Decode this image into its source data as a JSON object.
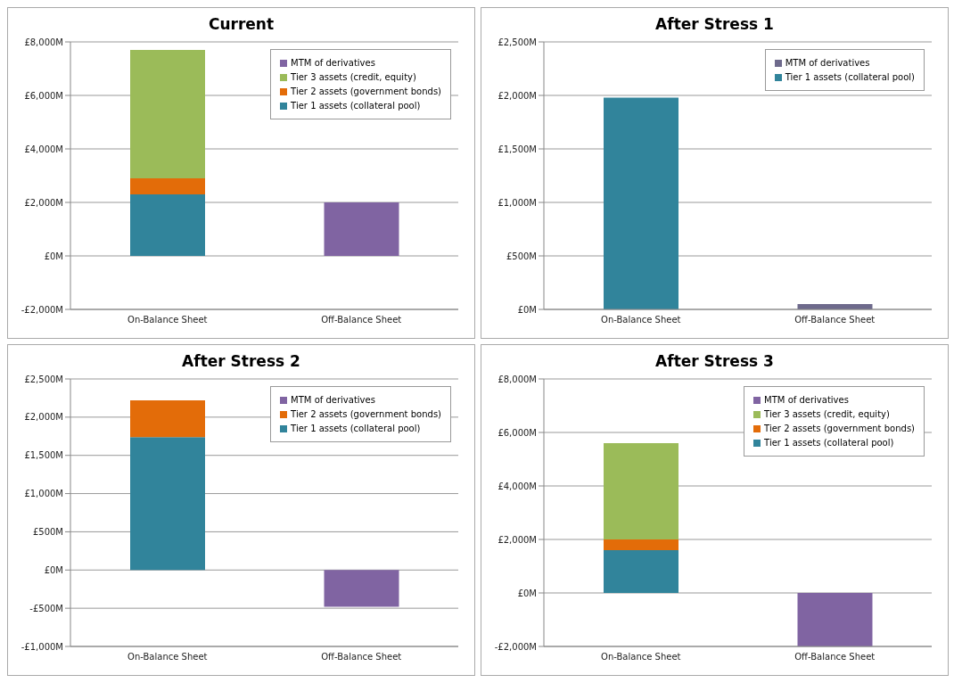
{
  "chart_data": [
    {
      "type": "bar",
      "title": "Current",
      "stacked": true,
      "categories": [
        "On-Balance Sheet",
        "Off-Balance Sheet"
      ],
      "ylim": [
        -2000,
        8000
      ],
      "yticks": [
        {
          "value": -2000,
          "label": "-£2,000M"
        },
        {
          "value": 0,
          "label": "£0M"
        },
        {
          "value": 2000,
          "label": "£2,000M"
        },
        {
          "value": 4000,
          "label": "£4,000M"
        },
        {
          "value": 6000,
          "label": "£6,000M"
        },
        {
          "value": 8000,
          "label": "£8,000M"
        }
      ],
      "grid": "y",
      "legend": "top right",
      "series": [
        {
          "name": "Tier 1 assets (collateral pool)",
          "color": "#31849b",
          "values": [
            2300,
            null
          ]
        },
        {
          "name": "Tier 2 assets (government bonds)",
          "color": "#e36c09",
          "values": [
            600,
            null
          ]
        },
        {
          "name": "Tier 3 assets (credit, equity)",
          "color": "#9bbb59",
          "values": [
            4800,
            null
          ]
        },
        {
          "name": "MTM of derivatives",
          "color": "#8064a2",
          "values": [
            null,
            2000
          ]
        }
      ]
    },
    {
      "type": "bar",
      "title": "After Stress 1",
      "stacked": true,
      "categories": [
        "On-Balance Sheet",
        "Off-Balance Sheet"
      ],
      "ylim": [
        0,
        2500
      ],
      "yticks": [
        {
          "value": 0,
          "label": "£0M"
        },
        {
          "value": 500,
          "label": "£500M"
        },
        {
          "value": 1000,
          "label": "£1,000M"
        },
        {
          "value": 1500,
          "label": "£1,500M"
        },
        {
          "value": 2000,
          "label": "£2,000M"
        },
        {
          "value": 2500,
          "label": "£2,500M"
        }
      ],
      "grid": "y",
      "legend": "top right",
      "series": [
        {
          "name": "Tier 1 assets (collateral pool)",
          "color": "#31849b",
          "values": [
            1980,
            null
          ]
        },
        {
          "name": "MTM of derivatives",
          "color": "#6e6a8c",
          "values": [
            null,
            50
          ]
        }
      ]
    },
    {
      "type": "bar",
      "title": "After Stress 2",
      "stacked": true,
      "categories": [
        "On-Balance Sheet",
        "Off-Balance Sheet"
      ],
      "ylim": [
        -1000,
        2500
      ],
      "yticks": [
        {
          "value": -1000,
          "label": "-£1,000M"
        },
        {
          "value": -500,
          "label": "-£500M"
        },
        {
          "value": 0,
          "label": "£0M"
        },
        {
          "value": 500,
          "label": "£500M"
        },
        {
          "value": 1000,
          "label": "£1,000M"
        },
        {
          "value": 1500,
          "label": "£1,500M"
        },
        {
          "value": 2000,
          "label": "£2,000M"
        },
        {
          "value": 2500,
          "label": "£2,500M"
        }
      ],
      "grid": "y",
      "legend": "top right",
      "series": [
        {
          "name": "Tier 1 assets (collateral pool)",
          "color": "#31849b",
          "values": [
            1740,
            null
          ]
        },
        {
          "name": "Tier 2 assets (government bonds)",
          "color": "#e36c09",
          "values": [
            480,
            null
          ]
        },
        {
          "name": "MTM of derivatives",
          "color": "#8064a2",
          "values": [
            null,
            -480
          ]
        }
      ]
    },
    {
      "type": "bar",
      "title": "After Stress 3",
      "stacked": true,
      "categories": [
        "On-Balance Sheet",
        "Off-Balance Sheet"
      ],
      "ylim": [
        -2000,
        8000
      ],
      "yticks": [
        {
          "value": -2000,
          "label": "-£2,000M"
        },
        {
          "value": 0,
          "label": "£0M"
        },
        {
          "value": 2000,
          "label": "£2,000M"
        },
        {
          "value": 4000,
          "label": "£4,000M"
        },
        {
          "value": 6000,
          "label": "£6,000M"
        },
        {
          "value": 8000,
          "label": "£8,000M"
        }
      ],
      "grid": "y",
      "legend": "top right",
      "series": [
        {
          "name": "Tier 1 assets (collateral pool)",
          "color": "#31849b",
          "values": [
            1600,
            null
          ]
        },
        {
          "name": "Tier 2 assets (government bonds)",
          "color": "#e36c09",
          "values": [
            400,
            null
          ]
        },
        {
          "name": "Tier 3 assets (credit, equity)",
          "color": "#9bbb59",
          "values": [
            3600,
            null
          ]
        },
        {
          "name": "MTM of derivatives",
          "color": "#8064a2",
          "values": [
            null,
            -2000
          ]
        }
      ]
    }
  ]
}
